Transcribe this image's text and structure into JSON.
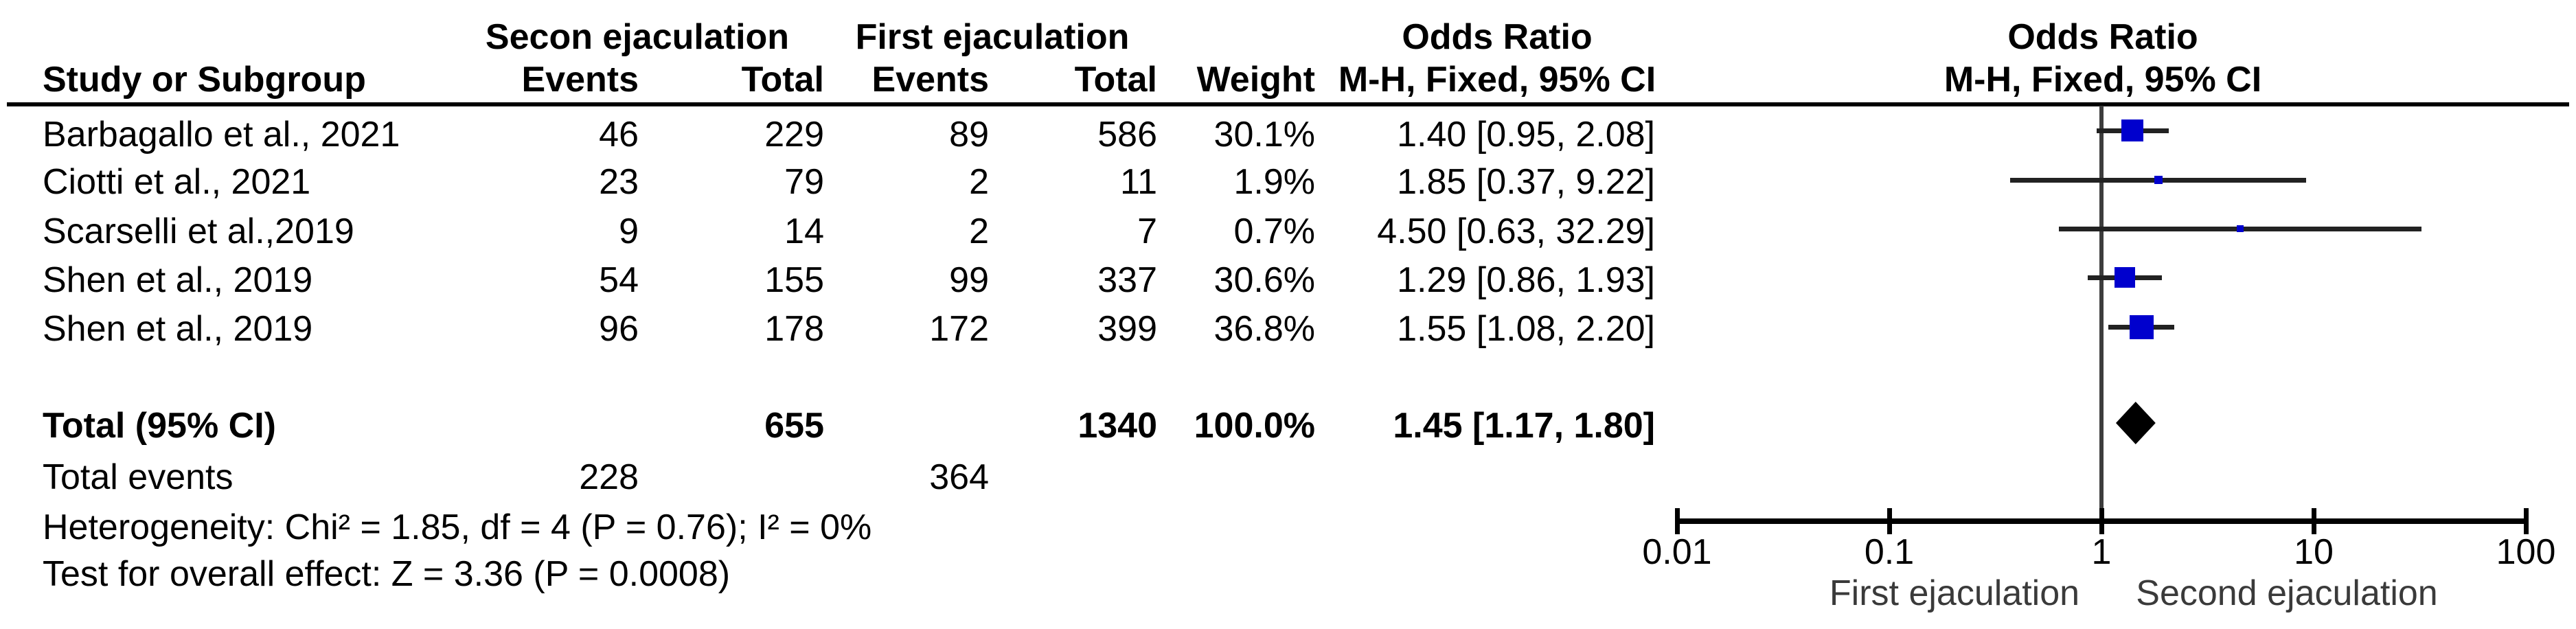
{
  "figure": {
    "columns": {
      "study": "Study or Subgroup",
      "group1": "Secon ejaculation",
      "group2": "First ejaculation",
      "events1": "Events",
      "total1": "Total",
      "events2": "Events",
      "total2": "Total",
      "weight": "Weight",
      "or_line1": "Odds Ratio",
      "or_line2": "M-H, Fixed, 95% CI"
    },
    "plot_header": {
      "line1": "Odds Ratio",
      "line2": "M-H, Fixed, 95% CI"
    },
    "total_label": "Total (95% CI)",
    "total_events_label": "Total events",
    "heterogeneity": "Heterogeneity: Chi² = 1.85, df = 4 (P = 0.76); I² = 0%",
    "overall_effect": "Test for overall effect: Z = 3.36 (P = 0.0008)"
  },
  "chart_data": {
    "type": "forest",
    "effect_measure": "Odds Ratio, M-H, Fixed, 95% CI",
    "studies": [
      {
        "name": "Barbagallo et al., 2021",
        "events_second": 46,
        "total_second": 229,
        "events_first": 89,
        "total_first": 586,
        "weight": "30.1%",
        "or": 1.4,
        "ci_low": 0.95,
        "ci_high": 2.08,
        "or_label": "1.40 [0.95, 2.08]"
      },
      {
        "name": "Ciotti et al., 2021",
        "events_second": 23,
        "total_second": 79,
        "events_first": 2,
        "total_first": 11,
        "weight": "1.9%",
        "or": 1.85,
        "ci_low": 0.37,
        "ci_high": 9.22,
        "or_label": "1.85 [0.37, 9.22]"
      },
      {
        "name": "Scarselli et al.,2019",
        "events_second": 9,
        "total_second": 14,
        "events_first": 2,
        "total_first": 7,
        "weight": "0.7%",
        "or": 4.5,
        "ci_low": 0.63,
        "ci_high": 32.29,
        "or_label": "4.50 [0.63, 32.29]"
      },
      {
        "name": "Shen et al., 2019",
        "events_second": 54,
        "total_second": 155,
        "events_first": 99,
        "total_first": 337,
        "weight": "30.6%",
        "or": 1.29,
        "ci_low": 0.86,
        "ci_high": 1.93,
        "or_label": "1.29 [0.86, 1.93]"
      },
      {
        "name": "Shen et al., 2019",
        "events_second": 96,
        "total_second": 178,
        "events_first": 172,
        "total_first": 399,
        "weight": "36.8%",
        "or": 1.55,
        "ci_low": 1.08,
        "ci_high": 2.2,
        "or_label": "1.55 [1.08, 2.20]"
      }
    ],
    "total": {
      "total_second": 655,
      "total_first": 1340,
      "weight": "100.0%",
      "or": 1.45,
      "ci_low": 1.17,
      "ci_high": 1.8,
      "or_label": "1.45 [1.17, 1.80]"
    },
    "total_events": {
      "second": 228,
      "first": 364
    },
    "axis": {
      "scale": "log",
      "ticks": [
        0.01,
        0.1,
        1,
        10,
        100
      ],
      "tick_labels": [
        "0.01",
        "0.1",
        "1",
        "10",
        "100"
      ],
      "left_label": "First ejaculation",
      "right_label": "Second ejaculation"
    },
    "colors": {
      "marker": "#0000cd",
      "diamond": "#000000",
      "ci_line": "#222222",
      "axis": "#000000",
      "null_line": "#3d3d3d"
    }
  }
}
